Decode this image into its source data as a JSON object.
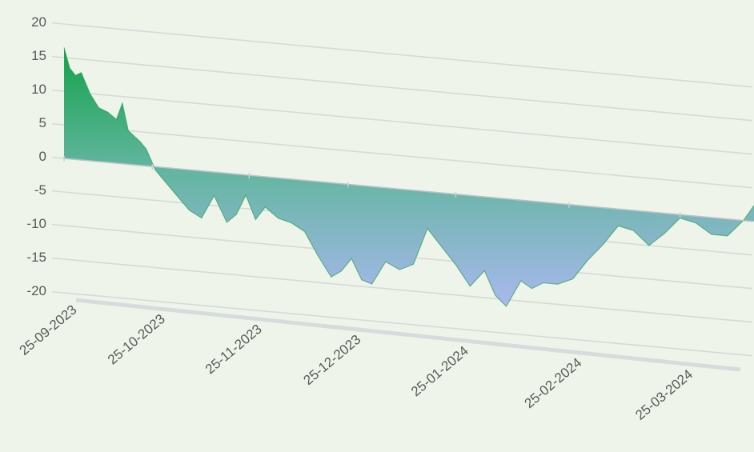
{
  "chart_data": {
    "type": "area",
    "x": [
      "2023-09-25",
      "2023-09-27",
      "2023-09-29",
      "2023-10-01",
      "2023-10-04",
      "2023-10-07",
      "2023-10-10",
      "2023-10-13",
      "2023-10-15",
      "2023-10-17",
      "2023-10-21",
      "2023-10-23",
      "2023-10-26",
      "2023-10-29",
      "2023-11-04",
      "2023-11-06",
      "2023-11-10",
      "2023-11-14",
      "2023-11-18",
      "2023-11-21",
      "2023-11-24",
      "2023-11-27",
      "2023-11-30",
      "2023-12-04",
      "2023-12-08",
      "2023-12-12",
      "2023-12-16",
      "2023-12-20",
      "2023-12-23",
      "2023-12-26",
      "2023-12-29",
      "2024-01-01",
      "2024-01-05",
      "2024-01-09",
      "2024-01-13",
      "2024-01-17",
      "2024-01-21",
      "2024-01-25",
      "2024-01-29",
      "2024-02-02",
      "2024-02-05",
      "2024-02-08",
      "2024-02-12",
      "2024-02-15",
      "2024-02-18",
      "2024-02-22",
      "2024-02-26",
      "2024-03-01",
      "2024-03-05",
      "2024-03-09",
      "2024-03-13",
      "2024-03-17",
      "2024-03-21",
      "2024-03-25",
      "2024-03-29",
      "2024-04-02",
      "2024-04-06",
      "2024-04-10",
      "2024-04-13"
    ],
    "values": [
      16.5,
      13.5,
      12.5,
      13,
      10,
      8,
      7.5,
      6.5,
      9,
      5,
      3.5,
      2.5,
      -0.5,
      -2,
      -5,
      -6,
      -7,
      -3.5,
      -7.3,
      -6,
      -3,
      -6.5,
      -4.5,
      -6,
      -6.5,
      -7.6,
      -11,
      -14,
      -13,
      -11,
      -14,
      -14.5,
      -11,
      -12,
      -11,
      -5.5,
      -8,
      -10.5,
      -13.5,
      -11,
      -14.5,
      -16,
      -12,
      -13,
      -12,
      -12,
      -11,
      -8,
      -5.5,
      -2.5,
      -3,
      -5,
      -3,
      -0.5,
      -1,
      -2.5,
      -2.5,
      0,
      2.7
    ],
    "color": "#1e9a4c",
    "ylim": [
      -20,
      20
    ],
    "yticks": [
      -20,
      -15,
      -10,
      -5,
      0,
      5,
      10,
      15,
      20
    ],
    "grid": true,
    "xticks": [
      {
        "value": "2023-09-25",
        "label": "25-09-2023"
      },
      {
        "value": "2023-10-25",
        "label": "25-10-2023"
      },
      {
        "value": "2023-11-25",
        "label": "25-11-2023"
      },
      {
        "value": "2023-12-25",
        "label": "25-12-2023"
      },
      {
        "value": "2024-01-25",
        "label": "25-01-2024"
      },
      {
        "value": "2024-02-25",
        "label": "25-02-2024"
      },
      {
        "value": "2024-03-25",
        "label": "25-03-2024"
      }
    ]
  }
}
